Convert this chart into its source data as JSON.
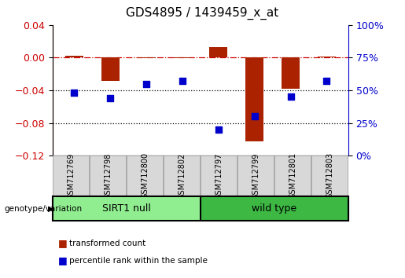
{
  "title": "GDS4895 / 1439459_x_at",
  "samples": [
    "GSM712769",
    "GSM712798",
    "GSM712800",
    "GSM712802",
    "GSM712797",
    "GSM712799",
    "GSM712801",
    "GSM712803"
  ],
  "groups": [
    {
      "label": "SIRT1 null",
      "indices": [
        0,
        1,
        2,
        3
      ],
      "color": "#90EE90"
    },
    {
      "label": "wild type",
      "indices": [
        4,
        5,
        6,
        7
      ],
      "color": "#3CB843"
    }
  ],
  "transformed_count": [
    0.002,
    -0.028,
    -0.001,
    -0.001,
    0.013,
    -0.102,
    -0.038,
    0.001
  ],
  "percentile_rank_pct": [
    48,
    44,
    55,
    57,
    20,
    30,
    45,
    57
  ],
  "ylim_left": [
    -0.12,
    0.04
  ],
  "ylim_right": [
    0,
    100
  ],
  "yticks_left": [
    0.04,
    0.0,
    -0.04,
    -0.08,
    -0.12
  ],
  "yticks_right": [
    100,
    75,
    50,
    25,
    0
  ],
  "hlines": [
    0.0,
    -0.04,
    -0.08
  ],
  "hline_styles": [
    "dashdot",
    "dotted",
    "dotted"
  ],
  "hline_colors": [
    "#cc0000",
    "#000000",
    "#000000"
  ],
  "bar_color": "#aa2200",
  "dot_color": "#0000cc",
  "bar_width": 0.5,
  "dot_size": 35,
  "legend_items": [
    {
      "label": "transformed count",
      "color": "#aa2200"
    },
    {
      "label": "percentile rank within the sample",
      "color": "#0000cc"
    }
  ],
  "genotype_label": "genotype/variation",
  "title_fontsize": 11,
  "tick_fontsize": 9,
  "sample_fontsize": 7,
  "group_fontsize": 9
}
